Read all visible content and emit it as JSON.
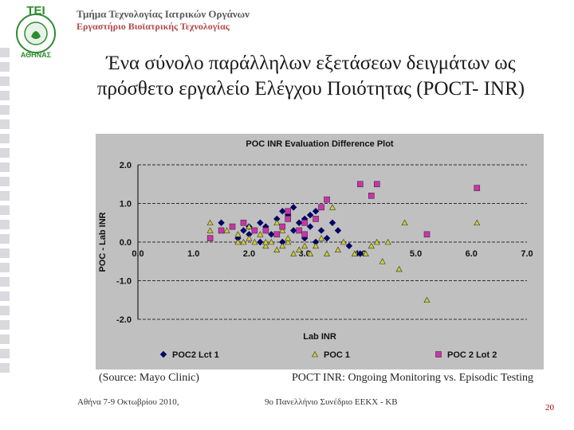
{
  "header": {
    "institution_line1": "Τμήμα Τεχνολογίας Ιατρικών Οργάνων",
    "institution_line2": "Εργαστήριο Βιοϊατρικής Τεχνολογίας",
    "logo_text_top": "ΤΕΙ",
    "logo_text_bottom": "ΑΘΗΝΑΣ"
  },
  "slide_title_line1": "Ένα σύνολο παράλληλων εξετάσεων δειγμάτων ως",
  "slide_title_line2": "πρόσθετο εργαλείο Ελέγχου Ποιότητας (POCT- INR)",
  "chart_data": {
    "type": "scatter",
    "title": "POC INR Evaluation Difference Plot",
    "xlabel": "Lab INR",
    "ylabel": "POC - Lab INR",
    "xlim": [
      0,
      7
    ],
    "ylim": [
      -2,
      2
    ],
    "x_ticks": [
      "0.0",
      "1.0",
      "2.0",
      "3.0",
      "4.0",
      "5.0",
      "6.0",
      "7.0"
    ],
    "y_ticks": [
      "2.0",
      "1.0",
      "0.0",
      "-1.0",
      "-2.0"
    ],
    "grid": true,
    "legend_position": "bottom",
    "series": [
      {
        "name": "POC2 Lct 1",
        "marker": "diamond",
        "color": "#000066",
        "points": [
          [
            1.5,
            0.5
          ],
          [
            1.8,
            0.1
          ],
          [
            1.9,
            0.3
          ],
          [
            2.0,
            0.4
          ],
          [
            2.0,
            0.2
          ],
          [
            2.2,
            0.5
          ],
          [
            2.3,
            0.4
          ],
          [
            2.4,
            0.2
          ],
          [
            2.5,
            0.6
          ],
          [
            2.6,
            0.8
          ],
          [
            2.7,
            0.7
          ],
          [
            2.8,
            0.9
          ],
          [
            2.9,
            0.5
          ],
          [
            3.0,
            0.6
          ],
          [
            3.1,
            0.4
          ],
          [
            3.1,
            0.7
          ],
          [
            3.2,
            0.8
          ],
          [
            3.3,
            0.3
          ],
          [
            2.2,
            0.0
          ],
          [
            2.6,
            0.0
          ],
          [
            3.0,
            0.1
          ],
          [
            3.5,
            0.5
          ],
          [
            3.6,
            0.3
          ],
          [
            3.8,
            -0.1
          ],
          [
            4.0,
            -0.3
          ],
          [
            3.4,
            0.1
          ],
          [
            2.8,
            0.3
          ],
          [
            3.2,
            0.0
          ]
        ]
      },
      {
        "name": "POC 1",
        "marker": "triangle",
        "color": "#cccc33",
        "points": [
          [
            1.3,
            0.5
          ],
          [
            1.3,
            0.3
          ],
          [
            1.6,
            0.3
          ],
          [
            1.8,
            0.2
          ],
          [
            1.9,
            0.0
          ],
          [
            2.0,
            0.1
          ],
          [
            2.0,
            0.4
          ],
          [
            2.1,
            0.0
          ],
          [
            2.2,
            0.2
          ],
          [
            2.3,
            -0.1
          ],
          [
            2.4,
            0.0
          ],
          [
            2.5,
            -0.2
          ],
          [
            2.5,
            0.5
          ],
          [
            2.6,
            -0.1
          ],
          [
            2.7,
            0.0
          ],
          [
            2.7,
            0.1
          ],
          [
            2.8,
            -0.3
          ],
          [
            2.9,
            -0.2
          ],
          [
            3.0,
            -0.1
          ],
          [
            3.0,
            0.2
          ],
          [
            3.1,
            -0.3
          ],
          [
            3.2,
            -0.1
          ],
          [
            3.3,
            0.1
          ],
          [
            3.4,
            -0.3
          ],
          [
            3.5,
            0.9
          ],
          [
            3.6,
            -0.2
          ],
          [
            3.7,
            0.0
          ],
          [
            3.9,
            -0.3
          ],
          [
            4.1,
            -0.3
          ],
          [
            4.2,
            -0.1
          ],
          [
            4.3,
            0.0
          ],
          [
            4.4,
            -0.5
          ],
          [
            4.5,
            0.0
          ],
          [
            4.7,
            -0.7
          ],
          [
            4.8,
            0.5
          ],
          [
            2.3,
            0.0
          ],
          [
            1.8,
            0.0
          ],
          [
            2.6,
            0.3
          ],
          [
            5.2,
            -1.5
          ],
          [
            6.1,
            0.5
          ]
        ]
      },
      {
        "name": "POC 2 Lot 2",
        "marker": "square",
        "color": "#cc33aa",
        "points": [
          [
            1.3,
            0.1
          ],
          [
            1.5,
            0.3
          ],
          [
            1.7,
            0.4
          ],
          [
            1.9,
            0.5
          ],
          [
            2.1,
            0.3
          ],
          [
            2.3,
            0.3
          ],
          [
            2.5,
            0.2
          ],
          [
            2.6,
            0.4
          ],
          [
            2.7,
            0.6
          ],
          [
            2.7,
            0.8
          ],
          [
            2.9,
            0.3
          ],
          [
            3.0,
            0.5
          ],
          [
            3.0,
            0.2
          ],
          [
            3.2,
            0.6
          ],
          [
            3.3,
            0.9
          ],
          [
            3.4,
            1.1
          ],
          [
            4.0,
            1.5
          ],
          [
            4.2,
            1.2
          ],
          [
            4.3,
            1.5
          ],
          [
            5.2,
            0.2
          ],
          [
            6.1,
            1.4
          ]
        ]
      }
    ]
  },
  "captions": {
    "source": "(Source: Mayo Clinic)",
    "poct_note": "POCT INR: Ongoing Monitoring vs. Episodic Testing"
  },
  "footer": {
    "left": "Αθήνα 7-9 Οκτωβρίου 2010,",
    "middle": "9ο Πανελλήνιο Συνέδριο ΕΕΚΧ - ΚΒ",
    "page": "20"
  }
}
